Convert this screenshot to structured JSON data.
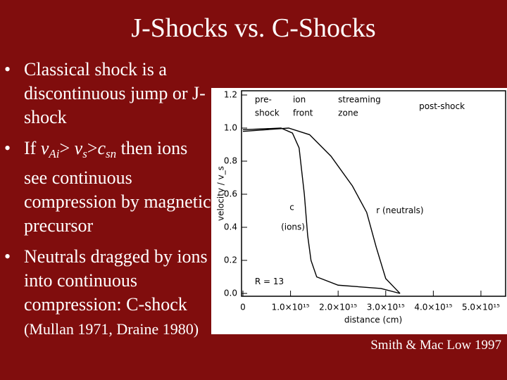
{
  "slide": {
    "title": "J-Shocks vs. C-Shocks",
    "bullets": [
      [
        {
          "text": "Classical shock is a discontinuous jump or J-shock"
        }
      ],
      [
        {
          "text": "If "
        },
        {
          "text": "v"
        },
        {
          "text": "Ai",
          "sub": true
        },
        {
          "text": "> "
        },
        {
          "text": "v"
        },
        {
          "text": "s",
          "sub": true
        },
        {
          "text": ">"
        },
        {
          "text": "c"
        },
        {
          "text": "sn",
          "sub": true
        },
        {
          "text": " then ions see continuous compression by magnetic precursor"
        }
      ],
      [
        {
          "text": "Neutrals dragged by ions into continuous compression: C-shock "
        },
        {
          "text": "(Mullan 1971, Draine 1980)",
          "small": true
        }
      ]
    ],
    "caption": "Smith & Mac Low 1997"
  },
  "chart_data": {
    "type": "line",
    "xlabel": "distance (cm)",
    "ylabel": "velocity / v_s",
    "xlim": [
      0,
      5400000000000000.0
    ],
    "ylim": [
      0,
      1.2
    ],
    "xticks": [
      {
        "value": 0,
        "label": "0"
      },
      {
        "value": 1000000000000000.0,
        "label": "1.0×10¹⁵"
      },
      {
        "value": 2000000000000000.0,
        "label": "2.0×10¹⁵"
      },
      {
        "value": 3000000000000000.0,
        "label": "3.0×10¹⁵"
      },
      {
        "value": 4000000000000000.0,
        "label": "4.0×10¹⁵"
      },
      {
        "value": 5000000000000000.0,
        "label": "5.0×10¹⁵"
      }
    ],
    "yticks": [
      {
        "value": 0,
        "label": "0.0"
      },
      0.2,
      0.4,
      0.6,
      0.8,
      {
        "value": 1,
        "label": "1.0"
      },
      1.2
    ],
    "series": [
      {
        "color": "#000000",
        "x": [
          0,
          800000000000000.0,
          1040000000000000.0,
          1180000000000000.0,
          1290000000000000.0,
          1360000000000000.0,
          1430000000000000.0,
          1550000000000000.0,
          2000000000000000.0,
          2900000000000000.0,
          3300000000000000.0
        ],
        "values": [
          0.99,
          1.0,
          0.97,
          0.88,
          0.6,
          0.35,
          0.2,
          0.1,
          0.05,
          0.03,
          0.0
        ]
      },
      {
        "color": "#000000",
        "x": [
          0,
          960000000000000.0,
          1400000000000000.0,
          1850000000000000.0,
          2300000000000000.0,
          2600000000000000.0,
          2800000000000000.0,
          3000000000000000.0,
          3200000000000000.0,
          3300000000000000.0
        ],
        "values": [
          0.98,
          1.0,
          0.96,
          0.83,
          0.65,
          0.49,
          0.28,
          0.09,
          0.03,
          0.0
        ]
      }
    ],
    "annotations": [
      {
        "text": "pre-",
        "x": 250000000000000.0,
        "y": 1.17
      },
      {
        "text": "shock",
        "x": 250000000000000.0,
        "y": 1.09
      },
      {
        "text": "ion",
        "x": 1050000000000000.0,
        "y": 1.17
      },
      {
        "text": "front",
        "x": 1050000000000000.0,
        "y": 1.09
      },
      {
        "text": "streaming",
        "x": 2000000000000000.0,
        "y": 1.17
      },
      {
        "text": "zone",
        "x": 2000000000000000.0,
        "y": 1.09
      },
      {
        "text": "post-shock",
        "x": 3700000000000000.0,
        "y": 1.13
      },
      {
        "text": "c",
        "x": 980000000000000.0,
        "y": 0.52
      },
      {
        "text": "(ions)",
        "x": 800000000000000.0,
        "y": 0.4
      },
      {
        "text": "r (neutrals)",
        "x": 2800000000000000.0,
        "y": 0.5
      },
      {
        "text": "R = 13",
        "x": 250000000000000.0,
        "y": 0.07
      }
    ]
  }
}
